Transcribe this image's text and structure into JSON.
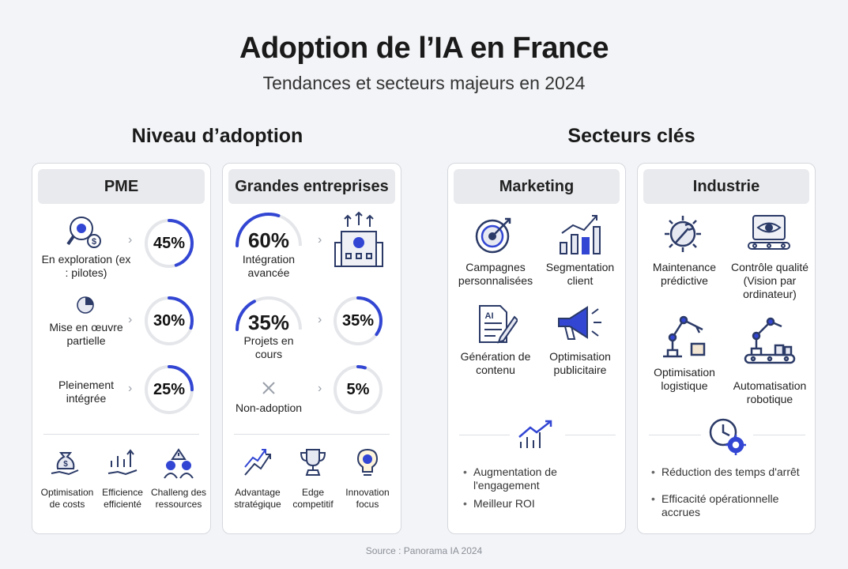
{
  "header": {
    "title": "Adoption de l’IA en France",
    "subtitle": "Tendances et secteurs majeurs en 2024"
  },
  "adoption": {
    "section_title": "Niveau d’adoption",
    "pme": {
      "title": "PME",
      "rows": [
        {
          "label": "En exploration (ex : pilotes)",
          "value": "45%",
          "percent": 45,
          "icon": "magnifier-gear-dollar-icon"
        },
        {
          "label": "Mise en œuvre partielle",
          "value": "30%",
          "percent": 30,
          "icon": "pie-chart-icon"
        },
        {
          "label": "Pleinement intégrée",
          "value": "25%",
          "percent": 25,
          "icon": ""
        }
      ],
      "bottom": [
        {
          "label": "Optimisation de costs",
          "icon": "money-bag-hand-icon"
        },
        {
          "label": "Efficience efficienté",
          "icon": "growth-arrows-hand-icon"
        },
        {
          "label": "Challeng des ressources",
          "icon": "team-warning-icon"
        }
      ]
    },
    "grandes": {
      "title": "Grandes entreprises",
      "rows": [
        {
          "label": "Intégration avancée",
          "value": "60%",
          "percent": 60,
          "right_icon": "building-gear-icon"
        },
        {
          "label": "Projets en cours",
          "value": "35%",
          "percent": 35,
          "right_value": "35%"
        },
        {
          "label": "Non-adoption",
          "value": "5%",
          "percent": 5,
          "left_icon": "cross-icon"
        }
      ],
      "bottom": [
        {
          "label": "Advantage stratégique",
          "icon": "rising-arrows-icon"
        },
        {
          "label": "Edge competitif",
          "icon": "trophy-icon"
        },
        {
          "label": "Innovation focus",
          "icon": "lightbulb-gear-icon"
        }
      ]
    }
  },
  "sectors": {
    "section_title": "Secteurs clés",
    "marketing": {
      "title": "Marketing",
      "items": [
        {
          "label": "Campagnes personnalisées",
          "icon": "target-icon"
        },
        {
          "label": "Segmentation client",
          "icon": "bar-chart-icon"
        },
        {
          "label": "Génération de contenu",
          "icon": "ai-document-icon"
        },
        {
          "label": "Optimisation publicitaire",
          "icon": "megaphone-icon"
        }
      ],
      "summary_icon": "trend-arrow-icon",
      "bullets": [
        "Augmentation de l'engagement",
        "Meilleur ROI"
      ]
    },
    "industrie": {
      "title": "Industrie",
      "items": [
        {
          "label": "Maintenance prédictive",
          "icon": "gear-wrench-icon"
        },
        {
          "label": "Contrôle qualité (Vision par ordinateur)",
          "icon": "eye-scanner-icon"
        },
        {
          "label": "Optimisation logistique",
          "icon": "robot-arm-box-icon"
        },
        {
          "label": "Automatisation robotique",
          "icon": "robot-arm-conveyor-icon"
        }
      ],
      "summary_icon": "clock-gear-icon",
      "bullets": [
        "Réduction des temps d'arrêt",
        "Efficacité opérationnelle accrues"
      ]
    }
  },
  "footer": {
    "source": "Source : Panorama IA 2024"
  },
  "colors": {
    "accent": "#3246d3",
    "ring_track": "#e4e6ea",
    "card_header": "#e9eaee",
    "icon_stroke": "#2b3a67"
  }
}
